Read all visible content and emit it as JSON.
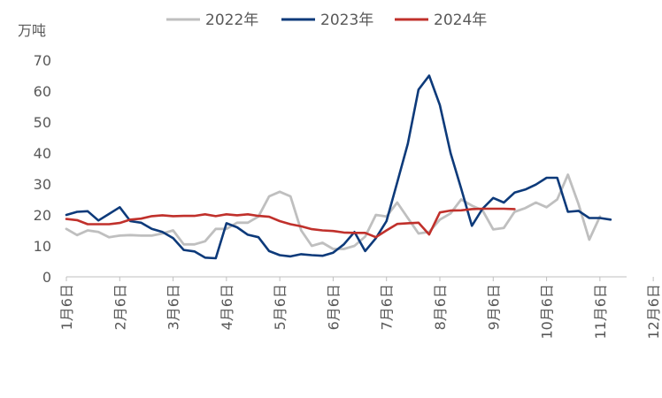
{
  "chart_data": {
    "type": "line",
    "unit_label": "万吨",
    "ylim": [
      0,
      70
    ],
    "yticks": [
      0,
      10,
      20,
      30,
      40,
      50,
      60,
      70
    ],
    "x_count": 53,
    "xtick_labels": [
      {
        "index": 0,
        "label": "1月6日"
      },
      {
        "index": 5,
        "label": "2月6日"
      },
      {
        "index": 10,
        "label": "3月6日"
      },
      {
        "index": 15,
        "label": "4月6日"
      },
      {
        "index": 20,
        "label": "5月6日"
      },
      {
        "index": 25,
        "label": "6月6日"
      },
      {
        "index": 30,
        "label": "7月6日"
      },
      {
        "index": 35,
        "label": "8月6日"
      },
      {
        "index": 40,
        "label": "9月6日"
      },
      {
        "index": 45,
        "label": "10月6日"
      },
      {
        "index": 50,
        "label": "11月6日"
      },
      {
        "index": 55,
        "label": "12月6日"
      }
    ],
    "legend_position": "top",
    "grid": false,
    "series": [
      {
        "name": "2022年",
        "color": "#bfbfbf",
        "values": [
          15.5,
          13.5,
          15,
          14.5,
          12.8,
          13.3,
          13.5,
          13.3,
          13.3,
          14,
          15,
          10.5,
          10.5,
          11.5,
          15.5,
          15.5,
          17.5,
          17.5,
          19.5,
          26,
          27.5,
          26,
          15,
          10,
          11,
          9,
          9,
          10,
          13,
          20,
          19.5,
          24,
          19,
          14,
          14.5,
          18.5,
          20.5,
          25,
          23,
          21.5,
          15.3,
          15.8,
          21,
          22.2,
          24,
          22.5,
          25,
          33,
          23.5,
          12,
          19.5
        ]
      },
      {
        "name": "2023年",
        "color": "#0d3a7a",
        "values": [
          20,
          21,
          21.2,
          18.2,
          20.3,
          22.5,
          18,
          17.5,
          15.5,
          14.5,
          12.5,
          8.7,
          8.2,
          6.2,
          6,
          17.3,
          16,
          13.6,
          12.8,
          8.3,
          7,
          6.6,
          7.3,
          7,
          6.8,
          7.8,
          10.5,
          14.5,
          8.3,
          12.5,
          18,
          30.5,
          43,
          60.5,
          65,
          55.5,
          40,
          28.5,
          16.5,
          22,
          25.5,
          24,
          27.2,
          28.2,
          29.8,
          32,
          32,
          21,
          21.3,
          19,
          19,
          18.5
        ]
      },
      {
        "name": "2024年",
        "color": "#c0302b",
        "values": [
          18.7,
          18.3,
          17,
          17,
          17,
          17.4,
          18.5,
          18.8,
          19.6,
          19.9,
          19.6,
          19.7,
          19.7,
          20.2,
          19.6,
          20.2,
          19.9,
          20.2,
          19.7,
          19.4,
          18,
          17,
          16.3,
          15.4,
          15,
          14.8,
          14.3,
          14.2,
          14.2,
          12.8,
          15,
          17.1,
          17.3,
          17.5,
          13.7,
          20.8,
          21.4,
          21.5,
          21.9,
          22,
          22,
          22,
          21.9
        ]
      }
    ]
  }
}
